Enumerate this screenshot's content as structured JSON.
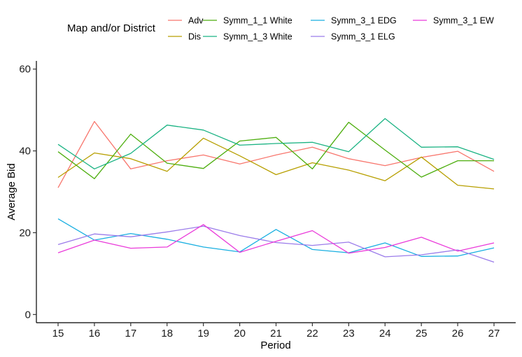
{
  "chart_data": {
    "type": "line",
    "xlabel": "Period",
    "ylabel": "Average Bid",
    "x": [
      15,
      16,
      17,
      18,
      19,
      20,
      21,
      22,
      23,
      24,
      25,
      26,
      27
    ],
    "ylim": [
      -2,
      62
    ],
    "yticks": [
      0,
      20,
      40,
      60
    ],
    "grid": false,
    "legend_title": "Map and/or District",
    "legend_position": "top",
    "series": [
      {
        "name": "Adv",
        "color": "#F8766D",
        "values": [
          31.0,
          47.2,
          35.6,
          37.6,
          39.0,
          36.8,
          39.0,
          40.9,
          38.1,
          36.4,
          38.4,
          39.9,
          35.0
        ]
      },
      {
        "name": "Dis",
        "color": "#B79F00",
        "values": [
          33.5,
          39.5,
          38.1,
          35.0,
          43.1,
          38.8,
          34.2,
          37.1,
          35.3,
          32.7,
          38.5,
          31.6,
          30.7
        ]
      },
      {
        "name": "Symm_1_1 White",
        "color": "#4DAE0E",
        "values": [
          39.8,
          33.2,
          44.1,
          37.0,
          35.7,
          42.4,
          43.3,
          35.6,
          47.0,
          40.2,
          33.6,
          37.6,
          37.6
        ]
      },
      {
        "name": "Symm_1_3 White",
        "color": "#1BB383",
        "values": [
          41.6,
          35.6,
          39.4,
          46.3,
          45.1,
          41.4,
          41.8,
          42.1,
          39.8,
          47.9,
          40.9,
          41.0,
          37.9
        ]
      },
      {
        "name": "Symm_3_1 EDG",
        "color": "#19AFE1",
        "values": [
          23.4,
          18.2,
          19.8,
          18.4,
          16.5,
          15.3,
          20.8,
          15.9,
          15.1,
          17.5,
          14.2,
          14.3,
          16.3
        ]
      },
      {
        "name": "Symm_3_1 ELG",
        "color": "#9B7CEA",
        "values": [
          17.1,
          19.7,
          19.0,
          20.2,
          21.6,
          19.3,
          17.6,
          16.9,
          17.7,
          14.1,
          14.6,
          15.8,
          12.8
        ]
      },
      {
        "name": "Symm_3_1 EW",
        "color": "#EA3BDA",
        "values": [
          15.1,
          18.2,
          16.2,
          16.5,
          22.0,
          15.2,
          17.9,
          20.5,
          15.0,
          16.4,
          18.9,
          15.5,
          17.5
        ]
      }
    ]
  }
}
